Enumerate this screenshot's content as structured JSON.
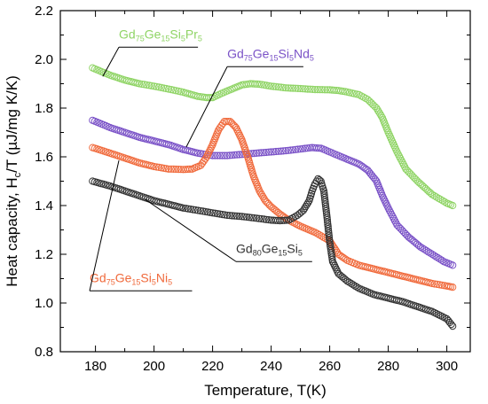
{
  "chart_data": {
    "type": "scatter",
    "xlabel": "Temperature, T(K)",
    "ylabel": {
      "main": "Heat capacity, H",
      "sub": "c",
      "rest": "/T (µJ/mg K/K)"
    },
    "xlim": [
      168,
      308
    ],
    "ylim": [
      0.8,
      2.2
    ],
    "xticks": [
      180,
      200,
      220,
      240,
      260,
      280,
      300
    ],
    "yticks": [
      0.8,
      1.0,
      1.2,
      1.4,
      1.6,
      1.8,
      2.0,
      2.2
    ],
    "grid": false,
    "marker": "open-circle",
    "series": [
      {
        "id": "pr",
        "name": {
          "parts": [
            {
              "t": "Gd",
              "s": false
            },
            {
              "t": "75",
              "s": true
            },
            {
              "t": "Ge",
              "s": false
            },
            {
              "t": "15",
              "s": true
            },
            {
              "t": "Si",
              "s": false
            },
            {
              "t": "5",
              "s": true
            },
            {
              "t": "Pr",
              "s": false
            },
            {
              "t": "5",
              "s": true
            }
          ]
        },
        "color": "#8fd465",
        "points": [
          [
            179,
            1.965
          ],
          [
            185,
            1.935
          ],
          [
            190,
            1.915
          ],
          [
            195,
            1.9
          ],
          [
            200,
            1.89
          ],
          [
            205,
            1.878
          ],
          [
            210,
            1.865
          ],
          [
            215,
            1.848
          ],
          [
            218,
            1.843
          ],
          [
            220,
            1.843
          ],
          [
            223,
            1.86
          ],
          [
            226,
            1.875
          ],
          [
            230,
            1.895
          ],
          [
            233,
            1.9
          ],
          [
            236,
            1.898
          ],
          [
            240,
            1.89
          ],
          [
            245,
            1.883
          ],
          [
            250,
            1.88
          ],
          [
            255,
            1.876
          ],
          [
            260,
            1.875
          ],
          [
            263,
            1.872
          ],
          [
            266,
            1.866
          ],
          [
            270,
            1.855
          ],
          [
            273,
            1.835
          ],
          [
            276,
            1.8
          ],
          [
            278,
            1.76
          ],
          [
            280,
            1.7
          ],
          [
            283,
            1.62
          ],
          [
            286,
            1.55
          ],
          [
            290,
            1.5
          ],
          [
            295,
            1.445
          ],
          [
            300,
            1.41
          ],
          [
            302,
            1.4
          ]
        ]
      },
      {
        "id": "nd",
        "name": {
          "parts": [
            {
              "t": "Gd",
              "s": false
            },
            {
              "t": "75",
              "s": true
            },
            {
              "t": "Ge",
              "s": false
            },
            {
              "t": "15",
              "s": true
            },
            {
              "t": "Si",
              "s": false
            },
            {
              "t": "5",
              "s": true
            },
            {
              "t": "Nd",
              "s": false
            },
            {
              "t": "5",
              "s": true
            }
          ]
        },
        "color": "#7a52c7",
        "points": [
          [
            179,
            1.75
          ],
          [
            185,
            1.72
          ],
          [
            190,
            1.7
          ],
          [
            195,
            1.68
          ],
          [
            200,
            1.665
          ],
          [
            205,
            1.65
          ],
          [
            210,
            1.63
          ],
          [
            215,
            1.615
          ],
          [
            220,
            1.605
          ],
          [
            225,
            1.605
          ],
          [
            230,
            1.61
          ],
          [
            235,
            1.615
          ],
          [
            240,
            1.62
          ],
          [
            245,
            1.625
          ],
          [
            250,
            1.632
          ],
          [
            254,
            1.638
          ],
          [
            257,
            1.635
          ],
          [
            260,
            1.62
          ],
          [
            263,
            1.605
          ],
          [
            266,
            1.59
          ],
          [
            270,
            1.57
          ],
          [
            273,
            1.545
          ],
          [
            276,
            1.5
          ],
          [
            278,
            1.44
          ],
          [
            280,
            1.39
          ],
          [
            283,
            1.32
          ],
          [
            287,
            1.27
          ],
          [
            291,
            1.23
          ],
          [
            295,
            1.2
          ],
          [
            299,
            1.17
          ],
          [
            302,
            1.155
          ]
        ]
      },
      {
        "id": "ni",
        "name": {
          "parts": [
            {
              "t": "Gd",
              "s": false
            },
            {
              "t": "75",
              "s": true
            },
            {
              "t": "Ge",
              "s": false
            },
            {
              "t": "15",
              "s": true
            },
            {
              "t": "Si",
              "s": false
            },
            {
              "t": "5",
              "s": true
            },
            {
              "t": "Ni",
              "s": false
            },
            {
              "t": "5",
              "s": true
            }
          ]
        },
        "color": "#f06a3c",
        "points": [
          [
            179,
            1.638
          ],
          [
            185,
            1.615
          ],
          [
            190,
            1.595
          ],
          [
            195,
            1.575
          ],
          [
            200,
            1.56
          ],
          [
            205,
            1.55
          ],
          [
            210,
            1.548
          ],
          [
            213,
            1.55
          ],
          [
            216,
            1.565
          ],
          [
            218,
            1.6
          ],
          [
            220,
            1.65
          ],
          [
            222,
            1.71
          ],
          [
            224,
            1.745
          ],
          [
            226,
            1.745
          ],
          [
            228,
            1.72
          ],
          [
            230,
            1.67
          ],
          [
            232,
            1.6
          ],
          [
            234,
            1.52
          ],
          [
            236,
            1.46
          ],
          [
            238,
            1.42
          ],
          [
            240,
            1.395
          ],
          [
            243,
            1.365
          ],
          [
            246,
            1.34
          ],
          [
            250,
            1.315
          ],
          [
            255,
            1.29
          ],
          [
            260,
            1.255
          ],
          [
            263,
            1.2
          ],
          [
            266,
            1.175
          ],
          [
            270,
            1.155
          ],
          [
            275,
            1.14
          ],
          [
            280,
            1.125
          ],
          [
            285,
            1.11
          ],
          [
            290,
            1.095
          ],
          [
            295,
            1.08
          ],
          [
            300,
            1.07
          ],
          [
            302,
            1.065
          ]
        ]
      },
      {
        "id": "gd80",
        "name": {
          "parts": [
            {
              "t": "Gd",
              "s": false
            },
            {
              "t": "80",
              "s": true
            },
            {
              "t": "Ge",
              "s": false
            },
            {
              "t": "15",
              "s": true
            },
            {
              "t": "Si",
              "s": false
            },
            {
              "t": "5",
              "s": true
            }
          ]
        },
        "color": "#333333",
        "points": [
          [
            179,
            1.5
          ],
          [
            185,
            1.48
          ],
          [
            190,
            1.46
          ],
          [
            195,
            1.44
          ],
          [
            200,
            1.42
          ],
          [
            205,
            1.405
          ],
          [
            210,
            1.39
          ],
          [
            215,
            1.38
          ],
          [
            220,
            1.37
          ],
          [
            225,
            1.36
          ],
          [
            230,
            1.355
          ],
          [
            235,
            1.348
          ],
          [
            240,
            1.34
          ],
          [
            243,
            1.338
          ],
          [
            246,
            1.34
          ],
          [
            249,
            1.36
          ],
          [
            251,
            1.38
          ],
          [
            253,
            1.42
          ],
          [
            254,
            1.46
          ],
          [
            255,
            1.49
          ],
          [
            256,
            1.51
          ],
          [
            257,
            1.5
          ],
          [
            258,
            1.46
          ],
          [
            259,
            1.36
          ],
          [
            260,
            1.25
          ],
          [
            261,
            1.17
          ],
          [
            263,
            1.12
          ],
          [
            266,
            1.09
          ],
          [
            270,
            1.06
          ],
          [
            275,
            1.035
          ],
          [
            280,
            1.02
          ],
          [
            285,
            1.005
          ],
          [
            290,
            0.985
          ],
          [
            295,
            0.965
          ],
          [
            300,
            0.935
          ],
          [
            302,
            0.905
          ]
        ]
      }
    ],
    "annotations": [
      {
        "series": "pr",
        "text_x": 188,
        "text_y": 2.085,
        "line": [
          [
            188,
            2.05
          ],
          [
            215,
            2.05
          ]
        ],
        "pointer": [
          [
            188,
            2.05
          ],
          [
            182.5,
            1.93
          ]
        ]
      },
      {
        "series": "nd",
        "text_x": 225,
        "text_y": 2.005,
        "line": [
          [
            225,
            1.97
          ],
          [
            251,
            1.97
          ]
        ],
        "pointer": [
          [
            225,
            1.97
          ],
          [
            211,
            1.64
          ]
        ]
      },
      {
        "series": "gd80",
        "text_x": 228,
        "text_y": 1.205,
        "line": [
          [
            228,
            1.17
          ],
          [
            254,
            1.17
          ]
        ],
        "pointer": [
          [
            228,
            1.17
          ],
          [
            197,
            1.425
          ]
        ]
      },
      {
        "series": "ni",
        "text_x": 178,
        "text_y": 1.085,
        "line": [
          [
            178,
            1.05
          ],
          [
            213,
            1.05
          ]
        ],
        "pointer": [
          [
            178,
            1.05
          ],
          [
            188,
            1.585
          ]
        ]
      }
    ]
  }
}
